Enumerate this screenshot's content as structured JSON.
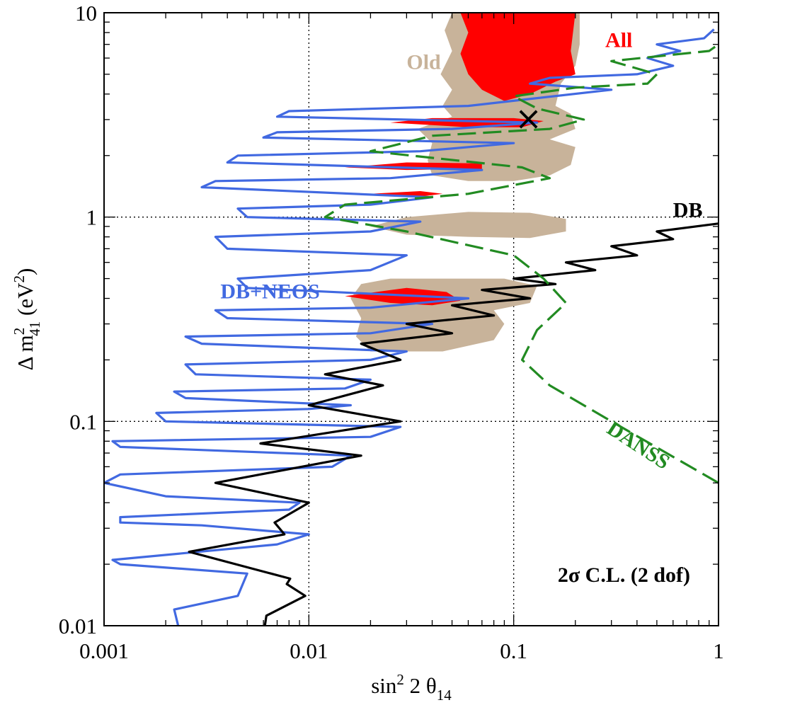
{
  "chart_data": {
    "type": "line",
    "xscale": "log",
    "yscale": "log",
    "xlim": [
      0.001,
      1
    ],
    "ylim": [
      0.01,
      10
    ],
    "xticks": [
      0.001,
      0.01,
      0.1,
      1
    ],
    "yticks": [
      0.01,
      0.1,
      1,
      10
    ],
    "xtick_labels": [
      "0.001",
      "0.01",
      "0.1",
      "1"
    ],
    "ytick_labels": [
      "0.01",
      "0.1",
      "1",
      "10"
    ],
    "grid": true,
    "xlabel": {
      "base": "sin",
      "sup": "2",
      "mid": " 2 θ",
      "sub": "14"
    },
    "ylabel": {
      "base": "Δ m",
      "sup1": "2",
      "sub": "41",
      "rest": " (eV",
      "sup2": "2",
      "end": ")"
    },
    "annotation": "2σ C.L. (2 dof)",
    "best_fit": {
      "x": 0.118,
      "y": 3.0,
      "marker": "×"
    },
    "regions": [
      {
        "name": "Old",
        "color": "#c8b39a",
        "polygons": [
          [
            [
              0.05,
              10
            ],
            [
              0.21,
              10
            ],
            [
              0.21,
              7
            ],
            [
              0.2,
              5.5
            ],
            [
              0.17,
              4.5
            ],
            [
              0.16,
              3.5
            ],
            [
              0.19,
              3.2
            ],
            [
              0.2,
              2.7
            ],
            [
              0.15,
              2.4
            ],
            [
              0.2,
              2.2
            ],
            [
              0.19,
              1.8
            ],
            [
              0.15,
              1.6
            ],
            [
              0.1,
              1.5
            ],
            [
              0.06,
              1.5
            ],
            [
              0.04,
              1.6
            ],
            [
              0.038,
              1.9
            ],
            [
              0.04,
              2.3
            ],
            [
              0.034,
              2.7
            ],
            [
              0.05,
              3.1
            ],
            [
              0.045,
              3.5
            ],
            [
              0.05,
              4.2
            ],
            [
              0.044,
              5.0
            ],
            [
              0.05,
              6.5
            ],
            [
              0.046,
              8.2
            ],
            [
              0.05,
              10
            ]
          ],
          [
            [
              0.02,
              0.9
            ],
            [
              0.03,
              0.82
            ],
            [
              0.06,
              0.8
            ],
            [
              0.12,
              0.79
            ],
            [
              0.18,
              0.85
            ],
            [
              0.18,
              0.98
            ],
            [
              0.12,
              1.05
            ],
            [
              0.06,
              1.06
            ],
            [
              0.03,
              1.0
            ],
            [
              0.02,
              0.9
            ]
          ],
          [
            [
              0.018,
              0.47
            ],
            [
              0.025,
              0.5
            ],
            [
              0.05,
              0.5
            ],
            [
              0.09,
              0.5
            ],
            [
              0.13,
              0.46
            ],
            [
              0.12,
              0.38
            ],
            [
              0.08,
              0.35
            ],
            [
              0.09,
              0.3
            ],
            [
              0.08,
              0.25
            ],
            [
              0.045,
              0.22
            ],
            [
              0.02,
              0.22
            ],
            [
              0.017,
              0.26
            ],
            [
              0.018,
              0.32
            ],
            [
              0.016,
              0.4
            ],
            [
              0.018,
              0.47
            ]
          ]
        ]
      },
      {
        "name": "All",
        "color": "#ff0000",
        "polygons": [
          [
            [
              0.055,
              10
            ],
            [
              0.2,
              10
            ],
            [
              0.19,
              6.5
            ],
            [
              0.2,
              5.0
            ],
            [
              0.16,
              4.6
            ],
            [
              0.12,
              4.0
            ],
            [
              0.09,
              3.7
            ],
            [
              0.07,
              4.2
            ],
            [
              0.06,
              5.0
            ],
            [
              0.055,
              6.3
            ],
            [
              0.06,
              8.0
            ],
            [
              0.055,
              10
            ]
          ],
          [
            [
              0.025,
              2.9
            ],
            [
              0.06,
              2.75
            ],
            [
              0.11,
              2.75
            ],
            [
              0.14,
              2.95
            ],
            [
              0.1,
              3.05
            ],
            [
              0.04,
              3.05
            ],
            [
              0.025,
              2.9
            ]
          ],
          [
            [
              0.015,
              1.75
            ],
            [
              0.03,
              1.7
            ],
            [
              0.07,
              1.72
            ],
            [
              0.07,
              1.83
            ],
            [
              0.03,
              1.85
            ],
            [
              0.015,
              1.75
            ]
          ],
          [
            [
              0.02,
              1.3
            ],
            [
              0.035,
              1.26
            ],
            [
              0.045,
              1.3
            ],
            [
              0.035,
              1.34
            ],
            [
              0.02,
              1.3
            ]
          ],
          [
            [
              0.015,
              0.41
            ],
            [
              0.025,
              0.38
            ],
            [
              0.04,
              0.37
            ],
            [
              0.055,
              0.39
            ],
            [
              0.047,
              0.43
            ],
            [
              0.03,
              0.45
            ],
            [
              0.015,
              0.41
            ]
          ]
        ]
      }
    ],
    "series": [
      {
        "name": "DB+NEOS",
        "color": "#4169e1",
        "dashed": false,
        "points": [
          [
            0.0023,
            0.01
          ],
          [
            0.0022,
            0.012
          ],
          [
            0.0045,
            0.014
          ],
          [
            0.005,
            0.018
          ],
          [
            0.0012,
            0.02
          ],
          [
            0.0011,
            0.021
          ],
          [
            0.007,
            0.025
          ],
          [
            0.01,
            0.028
          ],
          [
            0.003,
            0.031
          ],
          [
            0.0012,
            0.032
          ],
          [
            0.0012,
            0.034
          ],
          [
            0.008,
            0.037
          ],
          [
            0.009,
            0.04
          ],
          [
            0.002,
            0.043
          ],
          [
            0.001,
            0.05
          ],
          [
            0.0012,
            0.055
          ],
          [
            0.013,
            0.06
          ],
          [
            0.016,
            0.068
          ],
          [
            0.0012,
            0.075
          ],
          [
            0.0011,
            0.08
          ],
          [
            0.02,
            0.084
          ],
          [
            0.028,
            0.094
          ],
          [
            0.002,
            0.1
          ],
          [
            0.0018,
            0.11
          ],
          [
            0.01,
            0.115
          ],
          [
            0.016,
            0.12
          ],
          [
            0.0025,
            0.13
          ],
          [
            0.0022,
            0.14
          ],
          [
            0.015,
            0.145
          ],
          [
            0.02,
            0.16
          ],
          [
            0.0028,
            0.17
          ],
          [
            0.0025,
            0.19
          ],
          [
            0.02,
            0.2
          ],
          [
            0.03,
            0.22
          ],
          [
            0.003,
            0.24
          ],
          [
            0.0025,
            0.26
          ],
          [
            0.02,
            0.27
          ],
          [
            0.04,
            0.3
          ],
          [
            0.004,
            0.32
          ],
          [
            0.0035,
            0.35
          ],
          [
            0.02,
            0.36
          ],
          [
            0.06,
            0.4
          ],
          [
            0.005,
            0.45
          ],
          [
            0.0045,
            0.5
          ],
          [
            0.02,
            0.55
          ],
          [
            0.03,
            0.65
          ],
          [
            0.004,
            0.7
          ],
          [
            0.0035,
            0.8
          ],
          [
            0.02,
            0.85
          ],
          [
            0.035,
            0.95
          ],
          [
            0.005,
            1.0
          ],
          [
            0.0045,
            1.1
          ],
          [
            0.02,
            1.15
          ],
          [
            0.04,
            1.25
          ],
          [
            0.003,
            1.4
          ],
          [
            0.0035,
            1.5
          ],
          [
            0.025,
            1.55
          ],
          [
            0.07,
            1.7
          ],
          [
            0.004,
            1.85
          ],
          [
            0.0045,
            2.0
          ],
          [
            0.035,
            2.1
          ],
          [
            0.1,
            2.3
          ],
          [
            0.006,
            2.45
          ],
          [
            0.007,
            2.6
          ],
          [
            0.05,
            2.7
          ],
          [
            0.13,
            2.9
          ],
          [
            0.007,
            3.1
          ],
          [
            0.008,
            3.3
          ],
          [
            0.06,
            3.5
          ],
          [
            0.3,
            4.2
          ],
          [
            0.12,
            4.5
          ],
          [
            0.15,
            4.8
          ],
          [
            0.4,
            5.0
          ],
          [
            0.6,
            5.5
          ],
          [
            0.45,
            6.0
          ],
          [
            0.65,
            6.5
          ],
          [
            0.5,
            7.0
          ],
          [
            0.85,
            7.5
          ],
          [
            0.95,
            8.3
          ]
        ]
      },
      {
        "name": "DB",
        "color": "#000000",
        "dashed": false,
        "points": [
          [
            0.0061,
            0.01
          ],
          [
            0.0062,
            0.0112
          ],
          [
            0.0096,
            0.014
          ],
          [
            0.0078,
            0.016
          ],
          [
            0.0081,
            0.017
          ],
          [
            0.0026,
            0.023
          ],
          [
            0.0076,
            0.028
          ],
          [
            0.0068,
            0.032
          ],
          [
            0.01,
            0.04
          ],
          [
            0.0035,
            0.05
          ],
          [
            0.018,
            0.068
          ],
          [
            0.0058,
            0.078
          ],
          [
            0.028,
            0.1
          ],
          [
            0.01,
            0.12
          ],
          [
            0.023,
            0.15
          ],
          [
            0.012,
            0.17
          ],
          [
            0.028,
            0.2
          ],
          [
            0.018,
            0.24
          ],
          [
            0.05,
            0.27
          ],
          [
            0.03,
            0.3
          ],
          [
            0.08,
            0.33
          ],
          [
            0.05,
            0.37
          ],
          [
            0.12,
            0.4
          ],
          [
            0.07,
            0.44
          ],
          [
            0.16,
            0.47
          ],
          [
            0.1,
            0.5
          ],
          [
            0.25,
            0.55
          ],
          [
            0.18,
            0.6
          ],
          [
            0.4,
            0.65
          ],
          [
            0.3,
            0.72
          ],
          [
            0.6,
            0.78
          ],
          [
            0.5,
            0.85
          ],
          [
            1.0,
            0.93
          ]
        ]
      },
      {
        "name": "DANSS",
        "color": "#228b22",
        "dashed": true,
        "points": [
          [
            1.0,
            0.05
          ],
          [
            0.3,
            0.1
          ],
          [
            0.15,
            0.15
          ],
          [
            0.11,
            0.2
          ],
          [
            0.13,
            0.28
          ],
          [
            0.18,
            0.38
          ],
          [
            0.14,
            0.5
          ],
          [
            0.1,
            0.65
          ],
          [
            0.03,
            0.85
          ],
          [
            0.012,
            1.0
          ],
          [
            0.015,
            1.15
          ],
          [
            0.06,
            1.3
          ],
          [
            0.15,
            1.55
          ],
          [
            0.11,
            1.75
          ],
          [
            0.02,
            2.1
          ],
          [
            0.04,
            2.5
          ],
          [
            0.15,
            2.7
          ],
          [
            0.22,
            3.0
          ],
          [
            0.13,
            3.4
          ],
          [
            0.1,
            3.9
          ],
          [
            0.2,
            4.3
          ],
          [
            0.45,
            4.5
          ],
          [
            0.5,
            5.0
          ],
          [
            0.3,
            5.8
          ],
          [
            0.9,
            6.5
          ],
          [
            1.0,
            7.0
          ]
        ]
      }
    ],
    "labels": [
      {
        "text": "Old",
        "color": "#c8b39a",
        "x": 0.03,
        "y": 5.3
      },
      {
        "text": "All",
        "color": "#ff0000",
        "x": 0.28,
        "y": 6.8
      },
      {
        "text": "DB",
        "color": "#000000",
        "x": 0.6,
        "y": 1.0
      },
      {
        "text": "DB+NEOS",
        "color": "#4169e1",
        "x": 0.0037,
        "y": 0.4
      },
      {
        "text": "DANSS",
        "color": "#228b22",
        "x": 0.3,
        "y": 0.085
      }
    ]
  }
}
